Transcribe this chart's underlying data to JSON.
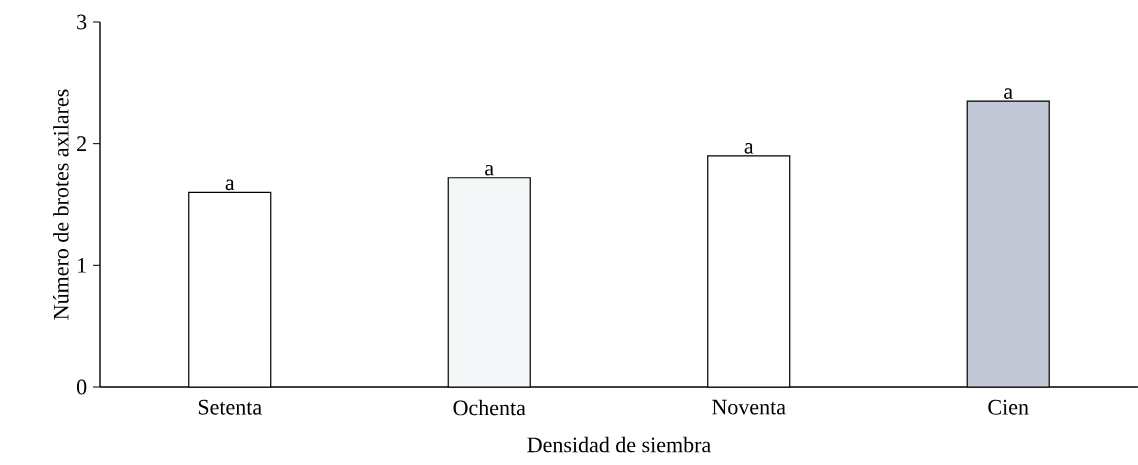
{
  "chart_data": {
    "type": "bar",
    "xlabel": "Densidad de siembra",
    "ylabel": "Número de brotes axilares",
    "categories": [
      "Setenta",
      "Ochenta",
      "Noventa",
      "Cien"
    ],
    "values": [
      1.6,
      1.72,
      1.9,
      2.35
    ],
    "value_labels": [
      "a",
      "a",
      "a",
      "a"
    ],
    "colors": [
      "#ffffff",
      "#f4f7f8",
      "#ffffff",
      "#c3c8d6"
    ],
    "ylim": [
      0,
      3
    ],
    "yticks": [
      0,
      1,
      2,
      3
    ]
  }
}
